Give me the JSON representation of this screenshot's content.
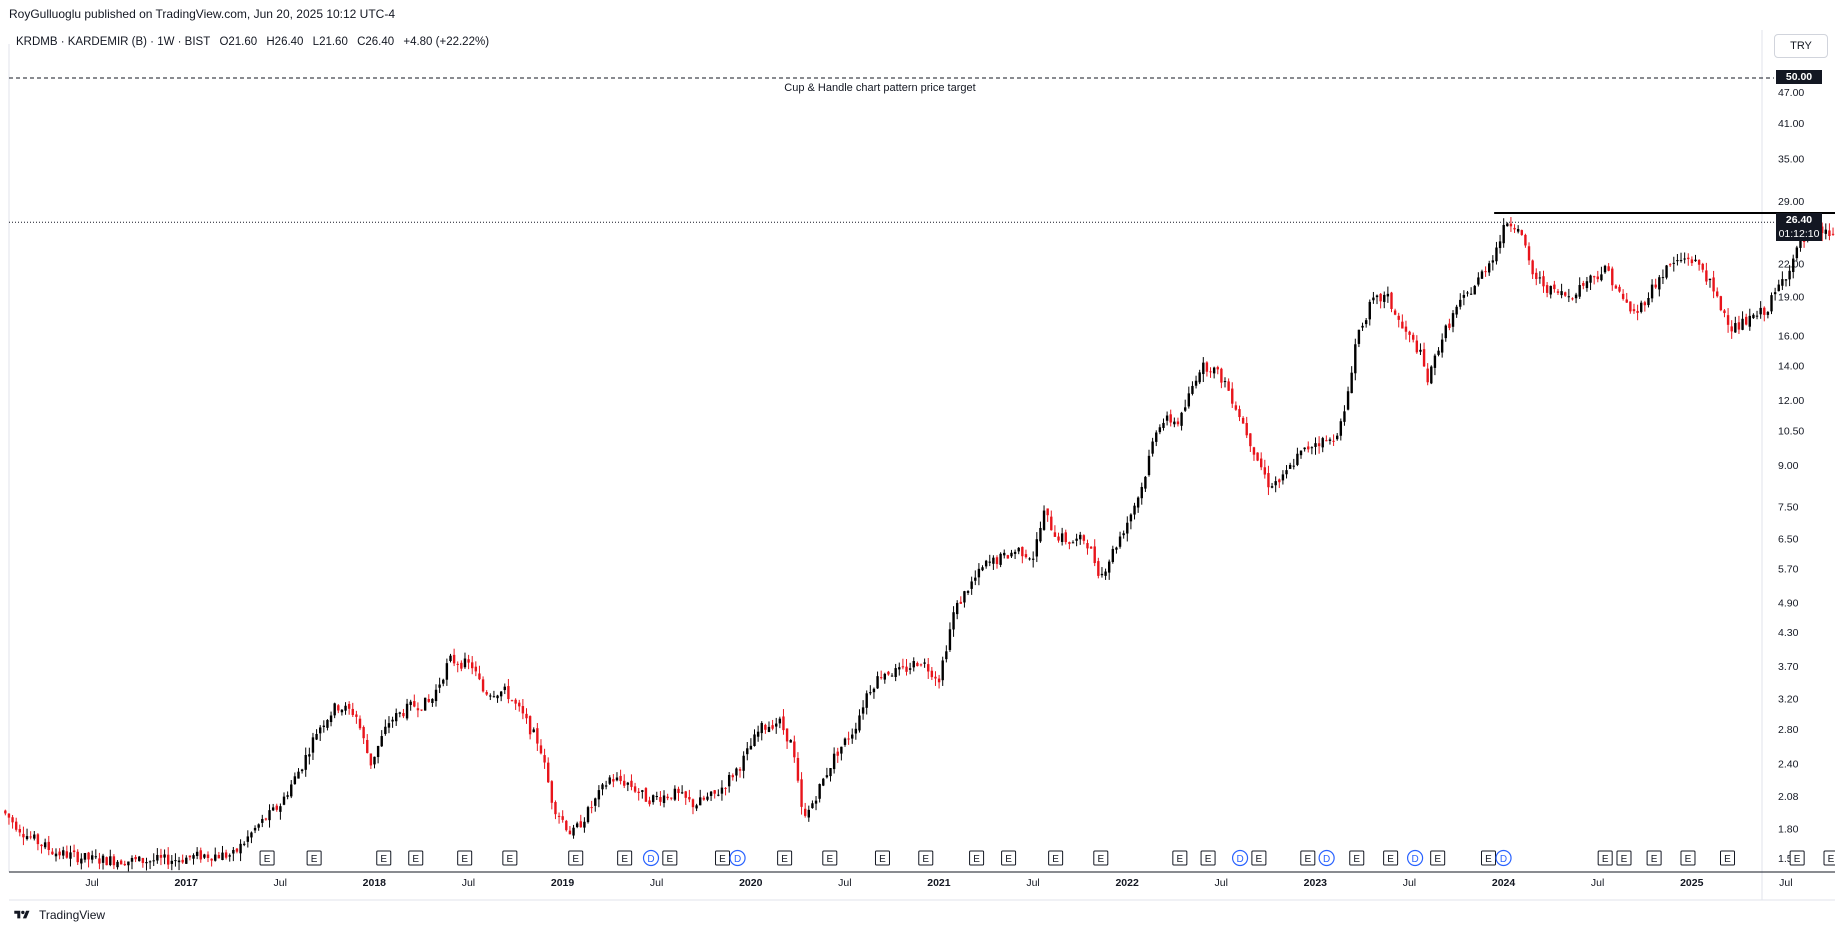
{
  "header": {
    "publisher_line": "RoyGulluoglu published on TradingView.com, Jun 20, 2025 10:12 UTC-4"
  },
  "legend": {
    "symbol": "KRDMB · KARDEMIR (B) · 1W · BIST",
    "open": "O21.60",
    "high": "H26.40",
    "low": "L21.60",
    "close": "C26.40",
    "change": "+4.80 (+22.22%)"
  },
  "currency_button": "TRY",
  "annotation": "Cup & Handle chart pattern price target",
  "price_tags": {
    "target": "50.00",
    "last": "26.40",
    "countdown": "01:12:10"
  },
  "footer": {
    "brand": "TradingView"
  },
  "colors": {
    "up": "#000000",
    "down": "#e8141b",
    "grid": "#f0f3fa",
    "axis_text": "#131722",
    "dividend": "#2962ff",
    "split": "#e040fb"
  },
  "icons": [
    "tradingview-logo-icon",
    "earnings-e-icon",
    "dividend-d-icon",
    "split-lightning-icon"
  ],
  "chart_data": {
    "type": "candlestick",
    "title": "",
    "scale": "log",
    "y_axis_ticks": [
      "50.00",
      "47.00",
      "41.00",
      "35.00",
      "29.00",
      "26.40",
      "22.00",
      "19.00",
      "16.00",
      "14.00",
      "12.00",
      "10.50",
      "9.00",
      "7.50",
      "6.50",
      "5.70",
      "4.90",
      "4.30",
      "3.70",
      "3.20",
      "2.80",
      "2.40",
      "2.08",
      "1.80",
      "1.58"
    ],
    "y_tick_values": [
      47,
      41,
      35,
      29,
      22,
      19,
      16,
      14,
      12,
      10.5,
      9,
      7.5,
      6.5,
      5.7,
      4.9,
      4.3,
      3.7,
      3.2,
      2.8,
      2.4,
      2.08,
      1.8,
      1.58
    ],
    "x_axis_ticks": [
      {
        "label": "Jul",
        "t": 0.5
      },
      {
        "label": "2017",
        "t": 1.0
      },
      {
        "label": "Jul",
        "t": 1.5
      },
      {
        "label": "2018",
        "t": 2.0
      },
      {
        "label": "Jul",
        "t": 2.5
      },
      {
        "label": "2019",
        "t": 3.0
      },
      {
        "label": "Jul",
        "t": 3.5
      },
      {
        "label": "2020",
        "t": 4.0
      },
      {
        "label": "Jul",
        "t": 4.5
      },
      {
        "label": "2021",
        "t": 5.0
      },
      {
        "label": "Jul",
        "t": 5.5
      },
      {
        "label": "2022",
        "t": 6.0
      },
      {
        "label": "Jul",
        "t": 6.5
      },
      {
        "label": "2023",
        "t": 7.0
      },
      {
        "label": "Jul",
        "t": 7.5
      },
      {
        "label": "2024",
        "t": 8.0
      },
      {
        "label": "Jul",
        "t": 8.5
      },
      {
        "label": "2025",
        "t": 9.0
      },
      {
        "label": "Jul",
        "t": 9.5
      }
    ],
    "bold_x_labels": [
      "2017",
      "2018",
      "2019",
      "2020",
      "2021",
      "2022",
      "2023",
      "2024",
      "2025"
    ],
    "price_anchors": [
      [
        0.02,
        1.95
      ],
      [
        0.15,
        1.75
      ],
      [
        0.3,
        1.62
      ],
      [
        0.5,
        1.57
      ],
      [
        0.75,
        1.56
      ],
      [
        0.95,
        1.57
      ],
      [
        1.1,
        1.6
      ],
      [
        1.25,
        1.6
      ],
      [
        1.38,
        1.82
      ],
      [
        1.5,
        2.0
      ],
      [
        1.62,
        2.4
      ],
      [
        1.7,
        2.8
      ],
      [
        1.8,
        3.1
      ],
      [
        1.9,
        3.0
      ],
      [
        1.98,
        2.4
      ],
      [
        2.08,
        2.9
      ],
      [
        2.2,
        3.1
      ],
      [
        2.3,
        3.15
      ],
      [
        2.4,
        3.8
      ],
      [
        2.52,
        3.7
      ],
      [
        2.58,
        3.3
      ],
      [
        2.7,
        3.3
      ],
      [
        2.78,
        3.0
      ],
      [
        2.88,
        2.6
      ],
      [
        2.95,
        2.0
      ],
      [
        3.05,
        1.75
      ],
      [
        3.12,
        1.9
      ],
      [
        3.25,
        2.25
      ],
      [
        3.35,
        2.2
      ],
      [
        3.45,
        2.05
      ],
      [
        3.6,
        2.1
      ],
      [
        3.7,
        2.0
      ],
      [
        3.82,
        2.1
      ],
      [
        3.95,
        2.4
      ],
      [
        4.05,
        2.8
      ],
      [
        4.15,
        2.9
      ],
      [
        4.22,
        2.6
      ],
      [
        4.28,
        1.85
      ],
      [
        4.35,
        2.1
      ],
      [
        4.45,
        2.5
      ],
      [
        4.55,
        2.8
      ],
      [
        4.62,
        3.3
      ],
      [
        4.7,
        3.6
      ],
      [
        4.8,
        3.6
      ],
      [
        4.9,
        3.8
      ],
      [
        5.0,
        3.5
      ],
      [
        5.08,
        4.7
      ],
      [
        5.15,
        5.2
      ],
      [
        5.25,
        5.8
      ],
      [
        5.35,
        6.0
      ],
      [
        5.42,
        6.2
      ],
      [
        5.5,
        6.0
      ],
      [
        5.56,
        7.3
      ],
      [
        5.62,
        6.6
      ],
      [
        5.7,
        6.4
      ],
      [
        5.78,
        6.5
      ],
      [
        5.86,
        5.5
      ],
      [
        5.92,
        6.1
      ],
      [
        6.0,
        7.0
      ],
      [
        6.08,
        8.2
      ],
      [
        6.16,
        10.8
      ],
      [
        6.22,
        11.0
      ],
      [
        6.28,
        10.9
      ],
      [
        6.38,
        13.8
      ],
      [
        6.44,
        14.0
      ],
      [
        6.52,
        13.0
      ],
      [
        6.6,
        11.2
      ],
      [
        6.68,
        9.5
      ],
      [
        6.75,
        8.3
      ],
      [
        6.82,
        8.4
      ],
      [
        6.9,
        9.3
      ],
      [
        7.0,
        10.0
      ],
      [
        7.08,
        10.0
      ],
      [
        7.15,
        11.0
      ],
      [
        7.22,
        16.0
      ],
      [
        7.3,
        18.5
      ],
      [
        7.38,
        19.0
      ],
      [
        7.46,
        16.5
      ],
      [
        7.55,
        15.0
      ],
      [
        7.6,
        13.0
      ],
      [
        7.66,
        15.5
      ],
      [
        7.75,
        18.0
      ],
      [
        7.85,
        20.0
      ],
      [
        7.95,
        23.0
      ],
      [
        8.02,
        26.5
      ],
      [
        8.08,
        26.0
      ],
      [
        8.15,
        21.0
      ],
      [
        8.25,
        19.5
      ],
      [
        8.35,
        19.0
      ],
      [
        8.45,
        20.5
      ],
      [
        8.55,
        21.5
      ],
      [
        8.62,
        19.0
      ],
      [
        8.7,
        17.5
      ],
      [
        8.78,
        19.5
      ],
      [
        8.88,
        21.8
      ],
      [
        8.98,
        22.6
      ],
      [
        9.06,
        21.5
      ],
      [
        9.14,
        18.5
      ],
      [
        9.22,
        16.5
      ],
      [
        9.3,
        17.0
      ],
      [
        9.4,
        18.0
      ],
      [
        9.5,
        21.0
      ],
      [
        9.58,
        24.0
      ],
      [
        9.66,
        25.5
      ],
      [
        9.74,
        25.0
      ],
      [
        9.82,
        26.0
      ],
      [
        9.88,
        27.0
      ],
      [
        9.94,
        23.5
      ],
      [
        10.02,
        22.0
      ],
      [
        10.1,
        22.0
      ],
      [
        10.16,
        22.0
      ],
      [
        10.2,
        26.4
      ]
    ],
    "resistance_line": {
      "price": 27.5,
      "t_start": 7.95,
      "t_end": 10.35
    },
    "target_line": {
      "price": 50.0,
      "label": "Cup & Handle chart pattern price target"
    },
    "last_price_line": {
      "price": 26.4
    },
    "events": [
      {
        "type": "E",
        "t": 1.43
      },
      {
        "type": "E",
        "t": 1.68
      },
      {
        "type": "E",
        "t": 2.05
      },
      {
        "type": "E",
        "t": 2.22
      },
      {
        "type": "E",
        "t": 2.48
      },
      {
        "type": "E",
        "t": 2.72
      },
      {
        "type": "E",
        "t": 3.07
      },
      {
        "type": "E",
        "t": 3.33
      },
      {
        "type": "D",
        "t": 3.47
      },
      {
        "type": "E",
        "t": 3.57
      },
      {
        "type": "E",
        "t": 3.85
      },
      {
        "type": "D",
        "t": 3.93
      },
      {
        "type": "E",
        "t": 4.18
      },
      {
        "type": "E",
        "t": 4.42
      },
      {
        "type": "E",
        "t": 4.7
      },
      {
        "type": "E",
        "t": 4.93
      },
      {
        "type": "E",
        "t": 5.2
      },
      {
        "type": "E",
        "t": 5.37
      },
      {
        "type": "E",
        "t": 5.62
      },
      {
        "type": "E",
        "t": 5.86
      },
      {
        "type": "E",
        "t": 6.28
      },
      {
        "type": "E",
        "t": 6.43
      },
      {
        "type": "D",
        "t": 6.6
      },
      {
        "type": "E",
        "t": 6.7
      },
      {
        "type": "E",
        "t": 6.96
      },
      {
        "type": "D",
        "t": 7.06
      },
      {
        "type": "E",
        "t": 7.22
      },
      {
        "type": "E",
        "t": 7.4
      },
      {
        "type": "D",
        "t": 7.53
      },
      {
        "type": "E",
        "t": 7.65
      },
      {
        "type": "E",
        "t": 7.92
      },
      {
        "type": "D",
        "t": 8.0
      },
      {
        "type": "E",
        "t": 8.54
      },
      {
        "type": "E",
        "t": 8.64
      },
      {
        "type": "E",
        "t": 8.8
      },
      {
        "type": "E",
        "t": 8.98
      },
      {
        "type": "E",
        "t": 9.19
      },
      {
        "type": "E",
        "t": 9.56
      },
      {
        "type": "E",
        "t": 9.74
      },
      {
        "type": "S",
        "t": 9.85
      },
      {
        "type": "E5",
        "t": 9.98
      }
    ]
  }
}
